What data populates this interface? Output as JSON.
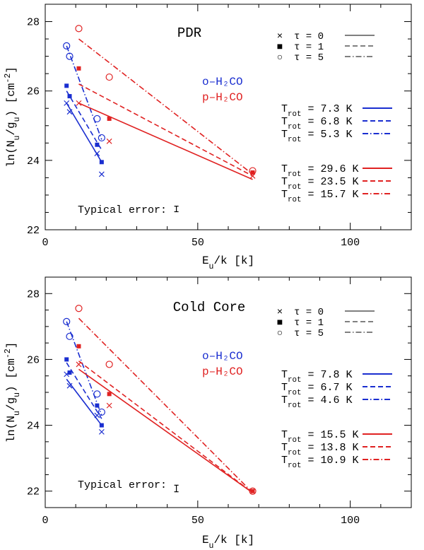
{
  "chart_data": [
    {
      "type": "scatter",
      "title": "PDR",
      "xlabel": "E_u/k [k]",
      "ylabel": "ln(N_u/g_u) [cm^-2]",
      "xlim": [
        0,
        120
      ],
      "ylim": [
        22,
        28.5
      ],
      "x_ticks": [
        0,
        50,
        100
      ],
      "y_ticks": [
        22,
        24,
        26,
        28
      ],
      "species_labels": [
        {
          "label": "o–H₂CO",
          "color": "#1a2ed0"
        },
        {
          "label": "p–H₂CO",
          "color": "#e02222"
        }
      ],
      "tau_legend": [
        {
          "marker": "×",
          "label": "τ = 0",
          "style": "solid"
        },
        {
          "marker": "■",
          "label": "τ = 1",
          "style": "dashed"
        },
        {
          "marker": "○",
          "label": "τ = 5",
          "style": "dashdot"
        }
      ],
      "trot_legend": [
        {
          "label": "T_rot = 7.3 K",
          "color": "#1a2ed0",
          "style": "solid"
        },
        {
          "label": "T_rot = 6.8 K",
          "color": "#1a2ed0",
          "style": "dashed"
        },
        {
          "label": "T_rot = 5.3 K",
          "color": "#1a2ed0",
          "style": "dashdot"
        },
        {
          "label": "T_rot = 29.6 K",
          "color": "#e02222",
          "style": "solid"
        },
        {
          "label": "T_rot = 23.5 K",
          "color": "#e02222",
          "style": "dashed"
        },
        {
          "label": "T_rot = 15.7 K",
          "color": "#e02222",
          "style": "dashdot"
        }
      ],
      "error_label": "Typical error:",
      "error_x": 43,
      "error_y": 22.6,
      "error_halfwidth": 0.08,
      "series": [
        {
          "name": "o-H2CO tau=0",
          "color": "#1a2ed0",
          "marker": "cross",
          "x": [
            7,
            8,
            17,
            18.5
          ],
          "y": [
            25.65,
            25.4,
            24.2,
            23.6
          ]
        },
        {
          "name": "o-H2CO tau=1",
          "color": "#1a2ed0",
          "marker": "square",
          "x": [
            7,
            8,
            17,
            18.5
          ],
          "y": [
            26.15,
            25.85,
            24.45,
            23.95
          ]
        },
        {
          "name": "o-H2CO tau=5",
          "color": "#1a2ed0",
          "marker": "circle",
          "x": [
            7,
            8,
            17,
            18.5
          ],
          "y": [
            27.3,
            27.0,
            25.2,
            24.65
          ]
        },
        {
          "name": "p-H2CO tau=0",
          "color": "#e02222",
          "marker": "cross",
          "x": [
            11,
            21,
            68
          ],
          "y": [
            25.65,
            24.55,
            23.55
          ]
        },
        {
          "name": "p-H2CO tau=1",
          "color": "#e02222",
          "marker": "square",
          "x": [
            11,
            21,
            68
          ],
          "y": [
            26.65,
            25.2,
            23.65
          ]
        },
        {
          "name": "p-H2CO tau=5",
          "color": "#e02222",
          "marker": "circle",
          "x": [
            11,
            21,
            68
          ],
          "y": [
            27.8,
            26.4,
            23.7
          ]
        }
      ],
      "fits": [
        {
          "name": "o-H2CO fit tau=0",
          "color": "#1a2ed0",
          "style": "solid",
          "x": [
            7,
            18.5
          ],
          "y": [
            25.65,
            23.95
          ]
        },
        {
          "name": "o-H2CO fit tau=1",
          "color": "#1a2ed0",
          "style": "dashed",
          "x": [
            7,
            18.5
          ],
          "y": [
            26.0,
            24.3
          ]
        },
        {
          "name": "o-H2CO fit tau=5",
          "color": "#1a2ed0",
          "style": "dashdot",
          "x": [
            7,
            18.5
          ],
          "y": [
            27.3,
            24.6
          ]
        },
        {
          "name": "p-H2CO fit tau=0",
          "color": "#e02222",
          "style": "solid",
          "x": [
            11,
            68
          ],
          "y": [
            25.65,
            23.45
          ]
        },
        {
          "name": "p-H2CO fit tau=1",
          "color": "#e02222",
          "style": "dashed",
          "x": [
            11,
            68
          ],
          "y": [
            26.2,
            23.55
          ]
        },
        {
          "name": "p-H2CO fit tau=5",
          "color": "#e02222",
          "style": "dashdot",
          "x": [
            11,
            68
          ],
          "y": [
            27.5,
            23.6
          ]
        }
      ]
    },
    {
      "type": "scatter",
      "title": "Cold Core",
      "xlabel": "E_u/k [k]",
      "ylabel": "ln(N_u/g_u) [cm^-2]",
      "xlim": [
        0,
        120
      ],
      "ylim": [
        21.5,
        28.5
      ],
      "x_ticks": [
        0,
        50,
        100
      ],
      "y_ticks": [
        22,
        24,
        26,
        28
      ],
      "species_labels": [
        {
          "label": "o–H₂CO",
          "color": "#1a2ed0"
        },
        {
          "label": "p–H₂CO",
          "color": "#e02222"
        }
      ],
      "tau_legend": [
        {
          "marker": "×",
          "label": "τ = 0",
          "style": "solid"
        },
        {
          "marker": "■",
          "label": "τ = 1",
          "style": "dashed"
        },
        {
          "marker": "○",
          "label": "τ = 5",
          "style": "dashdot"
        }
      ],
      "trot_legend": [
        {
          "label": "T_rot = 7.8 K",
          "color": "#1a2ed0",
          "style": "solid"
        },
        {
          "label": "T_rot = 6.7 K",
          "color": "#1a2ed0",
          "style": "dashed"
        },
        {
          "label": "T_rot = 4.6 K",
          "color": "#1a2ed0",
          "style": "dashdot"
        },
        {
          "label": "T_rot = 15.5 K",
          "color": "#e02222",
          "style": "solid"
        },
        {
          "label": "T_rot = 13.8 K",
          "color": "#e02222",
          "style": "dashed"
        },
        {
          "label": "T_rot = 10.9 K",
          "color": "#e02222",
          "style": "dashdot"
        }
      ],
      "error_label": "Typical error:",
      "error_x": 43,
      "error_y": 22.08,
      "error_halfwidth": 0.1,
      "series": [
        {
          "name": "o-H2CO tau=0",
          "color": "#1a2ed0",
          "marker": "cross",
          "x": [
            7,
            8,
            17,
            18.5
          ],
          "y": [
            25.55,
            25.2,
            24.3,
            23.8
          ]
        },
        {
          "name": "o-H2CO tau=1",
          "color": "#1a2ed0",
          "marker": "square",
          "x": [
            7,
            8,
            17,
            18.5
          ],
          "y": [
            26.0,
            25.6,
            24.6,
            24.0
          ]
        },
        {
          "name": "o-H2CO tau=5",
          "color": "#1a2ed0",
          "marker": "circle",
          "x": [
            7,
            8,
            17,
            18.5
          ],
          "y": [
            27.15,
            26.7,
            24.95,
            24.4
          ]
        },
        {
          "name": "p-H2CO tau=0",
          "color": "#e02222",
          "marker": "cross",
          "x": [
            11,
            21,
            68
          ],
          "y": [
            25.85,
            24.6,
            22.0
          ]
        },
        {
          "name": "p-H2CO tau=1",
          "color": "#e02222",
          "marker": "square",
          "x": [
            11,
            21,
            68
          ],
          "y": [
            26.4,
            24.95,
            22.0
          ]
        },
        {
          "name": "p-H2CO tau=5",
          "color": "#e02222",
          "marker": "circle",
          "x": [
            11,
            21,
            68
          ],
          "y": [
            27.55,
            25.85,
            22.0
          ]
        }
      ],
      "fits": [
        {
          "name": "o-H2CO fit tau=0",
          "color": "#1a2ed0",
          "style": "solid",
          "x": [
            7,
            18.5
          ],
          "y": [
            25.4,
            24.0
          ]
        },
        {
          "name": "o-H2CO fit tau=1",
          "color": "#1a2ed0",
          "style": "dashed",
          "x": [
            7,
            18.5
          ],
          "y": [
            25.9,
            24.2
          ]
        },
        {
          "name": "o-H2CO fit tau=5",
          "color": "#1a2ed0",
          "style": "dashdot",
          "x": [
            7,
            18.5
          ],
          "y": [
            27.15,
            24.3
          ]
        },
        {
          "name": "p-H2CO fit tau=0",
          "color": "#e02222",
          "style": "solid",
          "x": [
            11,
            68
          ],
          "y": [
            25.7,
            21.95
          ]
        },
        {
          "name": "p-H2CO fit tau=1",
          "color": "#e02222",
          "style": "dashed",
          "x": [
            11,
            68
          ],
          "y": [
            25.95,
            21.95
          ]
        },
        {
          "name": "p-H2CO fit tau=5",
          "color": "#e02222",
          "style": "dashdot",
          "x": [
            11,
            68
          ],
          "y": [
            27.25,
            21.95
          ]
        }
      ]
    }
  ]
}
